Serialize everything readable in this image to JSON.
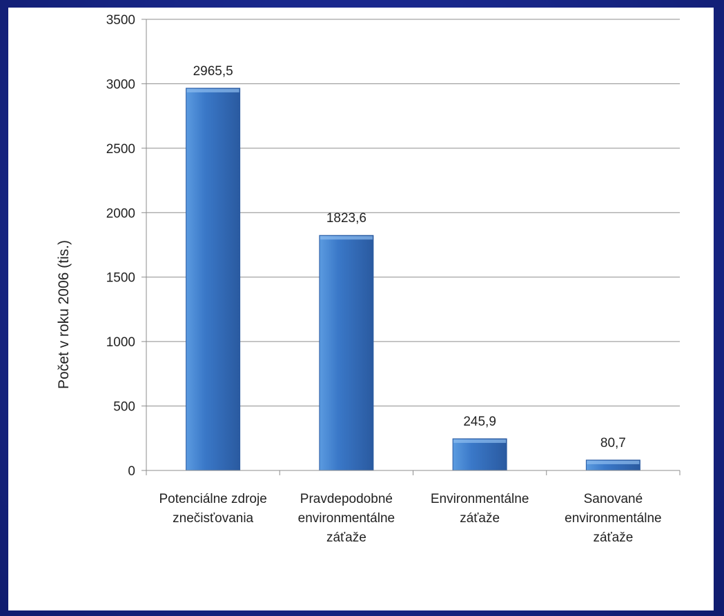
{
  "colors": {
    "frame": "#1a2a8c",
    "bar_light": "#5b9be0",
    "bar_mid": "#3a78c8",
    "bar_dark": "#2a5aa0",
    "gridline": "#8c8c8c"
  },
  "chart_data": {
    "type": "bar",
    "categories": [
      [
        "Potenciálne zdroje",
        "znečisťovania"
      ],
      [
        "Pravdepodobné",
        "environmentálne",
        "záťaže"
      ],
      [
        "Environmentálne",
        "záťaže"
      ],
      [
        "Sanované",
        "environmentálne",
        "záťaže"
      ]
    ],
    "values": [
      2965.5,
      1823.6,
      245.9,
      80.7
    ],
    "data_labels": [
      "2965,5",
      "1823,6",
      "245,9",
      "80,7"
    ],
    "ylabel": "Počet v roku 2006 (tis.)",
    "ylim": [
      0,
      3500
    ],
    "yticks": [
      0,
      500,
      1000,
      1500,
      2000,
      2500,
      3000,
      3500
    ],
    "grid": true,
    "legend": "none"
  }
}
